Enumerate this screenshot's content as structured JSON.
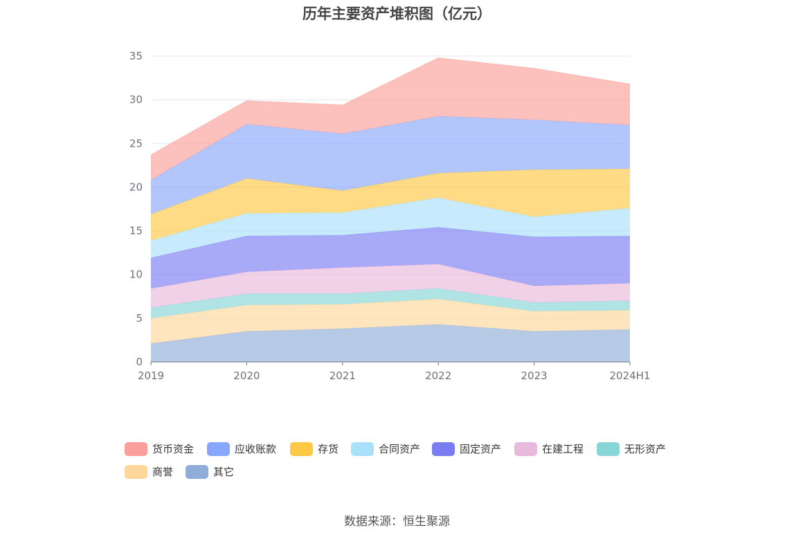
{
  "chart_data": {
    "type": "area",
    "stacked": true,
    "title": "历年主要资产堆积图（亿元）",
    "categories": [
      "2019",
      "2020",
      "2021",
      "2022",
      "2023",
      "2024H1"
    ],
    "ylim": [
      0,
      35
    ],
    "yticks": [
      0,
      5,
      10,
      15,
      20,
      25,
      30,
      35
    ],
    "grid": true,
    "legend_position": "bottom",
    "series": [
      {
        "name": "其它",
        "color": "#8fadd9",
        "values": [
          2.1,
          3.5,
          3.8,
          4.3,
          3.5,
          3.7
        ]
      },
      {
        "name": "商誉",
        "color": "#fdd79a",
        "values": [
          2.9,
          3.0,
          2.8,
          2.9,
          2.3,
          2.2
        ]
      },
      {
        "name": "无形资产",
        "color": "#86d6d6",
        "values": [
          1.2,
          1.3,
          1.2,
          1.2,
          1.0,
          1.1
        ]
      },
      {
        "name": "在建工程",
        "color": "#e8b9dc",
        "values": [
          2.2,
          2.5,
          3.0,
          2.8,
          1.9,
          2.0
        ]
      },
      {
        "name": "固定资产",
        "color": "#7a7cf2",
        "values": [
          3.5,
          4.1,
          3.7,
          4.2,
          5.6,
          5.4
        ]
      },
      {
        "name": "合同资产",
        "color": "#a9e0fa",
        "values": [
          2.0,
          2.6,
          2.6,
          3.4,
          2.3,
          3.2
        ]
      },
      {
        "name": "存货",
        "color": "#fdc842",
        "values": [
          3.0,
          4.0,
          2.5,
          2.8,
          5.4,
          4.5
        ]
      },
      {
        "name": "应收账款",
        "color": "#88a7fb",
        "values": [
          3.9,
          6.2,
          6.5,
          6.5,
          5.7,
          5.0
        ]
      },
      {
        "name": "货币资金",
        "color": "#fb9f9a",
        "values": [
          2.9,
          2.7,
          3.3,
          6.7,
          5.9,
          4.7
        ]
      }
    ]
  },
  "legend": {
    "items": [
      "货币资金",
      "应收账款",
      "存货",
      "合同资产",
      "固定资产",
      "在建工程",
      "无形资产",
      "商誉",
      "其它"
    ]
  },
  "source": "数据来源：恒生聚源"
}
